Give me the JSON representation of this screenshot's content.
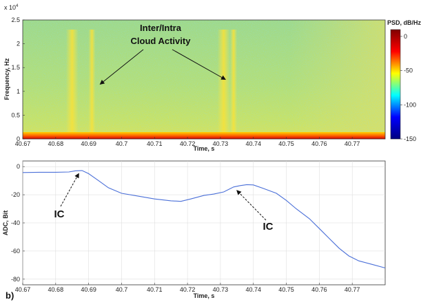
{
  "chart_data": [
    {
      "type": "heatmap",
      "panel": "spectrogram",
      "xlabel": "Time, s",
      "ylabel": "Frequency, Hz",
      "y_multiplier_label": "x 10",
      "y_multiplier_exponent": "4",
      "xlim": [
        40.67,
        40.78
      ],
      "ylim": [
        0,
        2.5
      ],
      "x_ticks": [
        "40.67",
        "40.68",
        "40.69",
        "40.7",
        "40.71",
        "40.72",
        "40.73",
        "40.74",
        "40.75",
        "40.76",
        "40.77"
      ],
      "y_ticks": [
        "0",
        "0.5",
        "1",
        "1.5",
        "2",
        "2.5"
      ],
      "colorbar": {
        "label": "PSD, dB/Hz",
        "range": [
          -150,
          10
        ],
        "ticks": [
          "0",
          "-50",
          "-100",
          "-150"
        ],
        "colors": [
          "#7f0000",
          "#ff0000",
          "#ffff00",
          "#00ffff",
          "#0000ff",
          "#00007f"
        ]
      },
      "bright_bands_time_s": [
        40.685,
        40.691,
        40.731,
        40.734
      ],
      "annotation": {
        "line1": "Inter/Intra",
        "line2": "Cloud Activity"
      },
      "annotation_arrow_targets": [
        {
          "time_s": 40.6935,
          "freq": 1.15
        },
        {
          "time_s": 40.7315,
          "freq": 1.25
        }
      ]
    },
    {
      "type": "line",
      "panel": "adc",
      "panel_letter": "b)",
      "xlabel": "Time, s",
      "ylabel": "ADC, Bit",
      "xlim": [
        40.67,
        40.78
      ],
      "ylim": [
        -84,
        4
      ],
      "x_ticks": [
        "40.67",
        "40.68",
        "40.69",
        "40.7",
        "40.71",
        "40.72",
        "40.73",
        "40.74",
        "40.75",
        "40.76",
        "40.77"
      ],
      "y_ticks": [
        "0",
        "-20",
        "-40",
        "-60",
        "-80"
      ],
      "line_color": "#4a6fd8",
      "series": [
        {
          "x": [
            40.67,
            40.675,
            40.68,
            40.684,
            40.686,
            40.688,
            40.69,
            40.693,
            40.696,
            40.7,
            40.705,
            40.71,
            40.715,
            40.718,
            40.721,
            40.725,
            40.728,
            40.731,
            40.734,
            40.736,
            40.738,
            40.74,
            40.743,
            40.747,
            40.75,
            40.753,
            40.757,
            40.76,
            40.763,
            40.766,
            40.769,
            40.772,
            40.776,
            40.78
          ],
          "y": [
            -4.2,
            -4,
            -4,
            -3.8,
            -3,
            -2.8,
            -5,
            -10,
            -15,
            -19,
            -21,
            -23,
            -24.3,
            -24.7,
            -23,
            -20.5,
            -19.5,
            -18,
            -14.5,
            -13.5,
            -12.8,
            -13,
            -15.5,
            -19,
            -24,
            -30,
            -37,
            -44,
            -51,
            -58,
            -63.5,
            -67,
            -69.5,
            -72
          ]
        }
      ],
      "annotations": [
        {
          "label": "IC",
          "arrow_target": {
            "x": 40.687,
            "y": -3
          }
        },
        {
          "label": "IC",
          "arrow_target": {
            "x": 40.735,
            "y": -15
          }
        }
      ]
    }
  ]
}
